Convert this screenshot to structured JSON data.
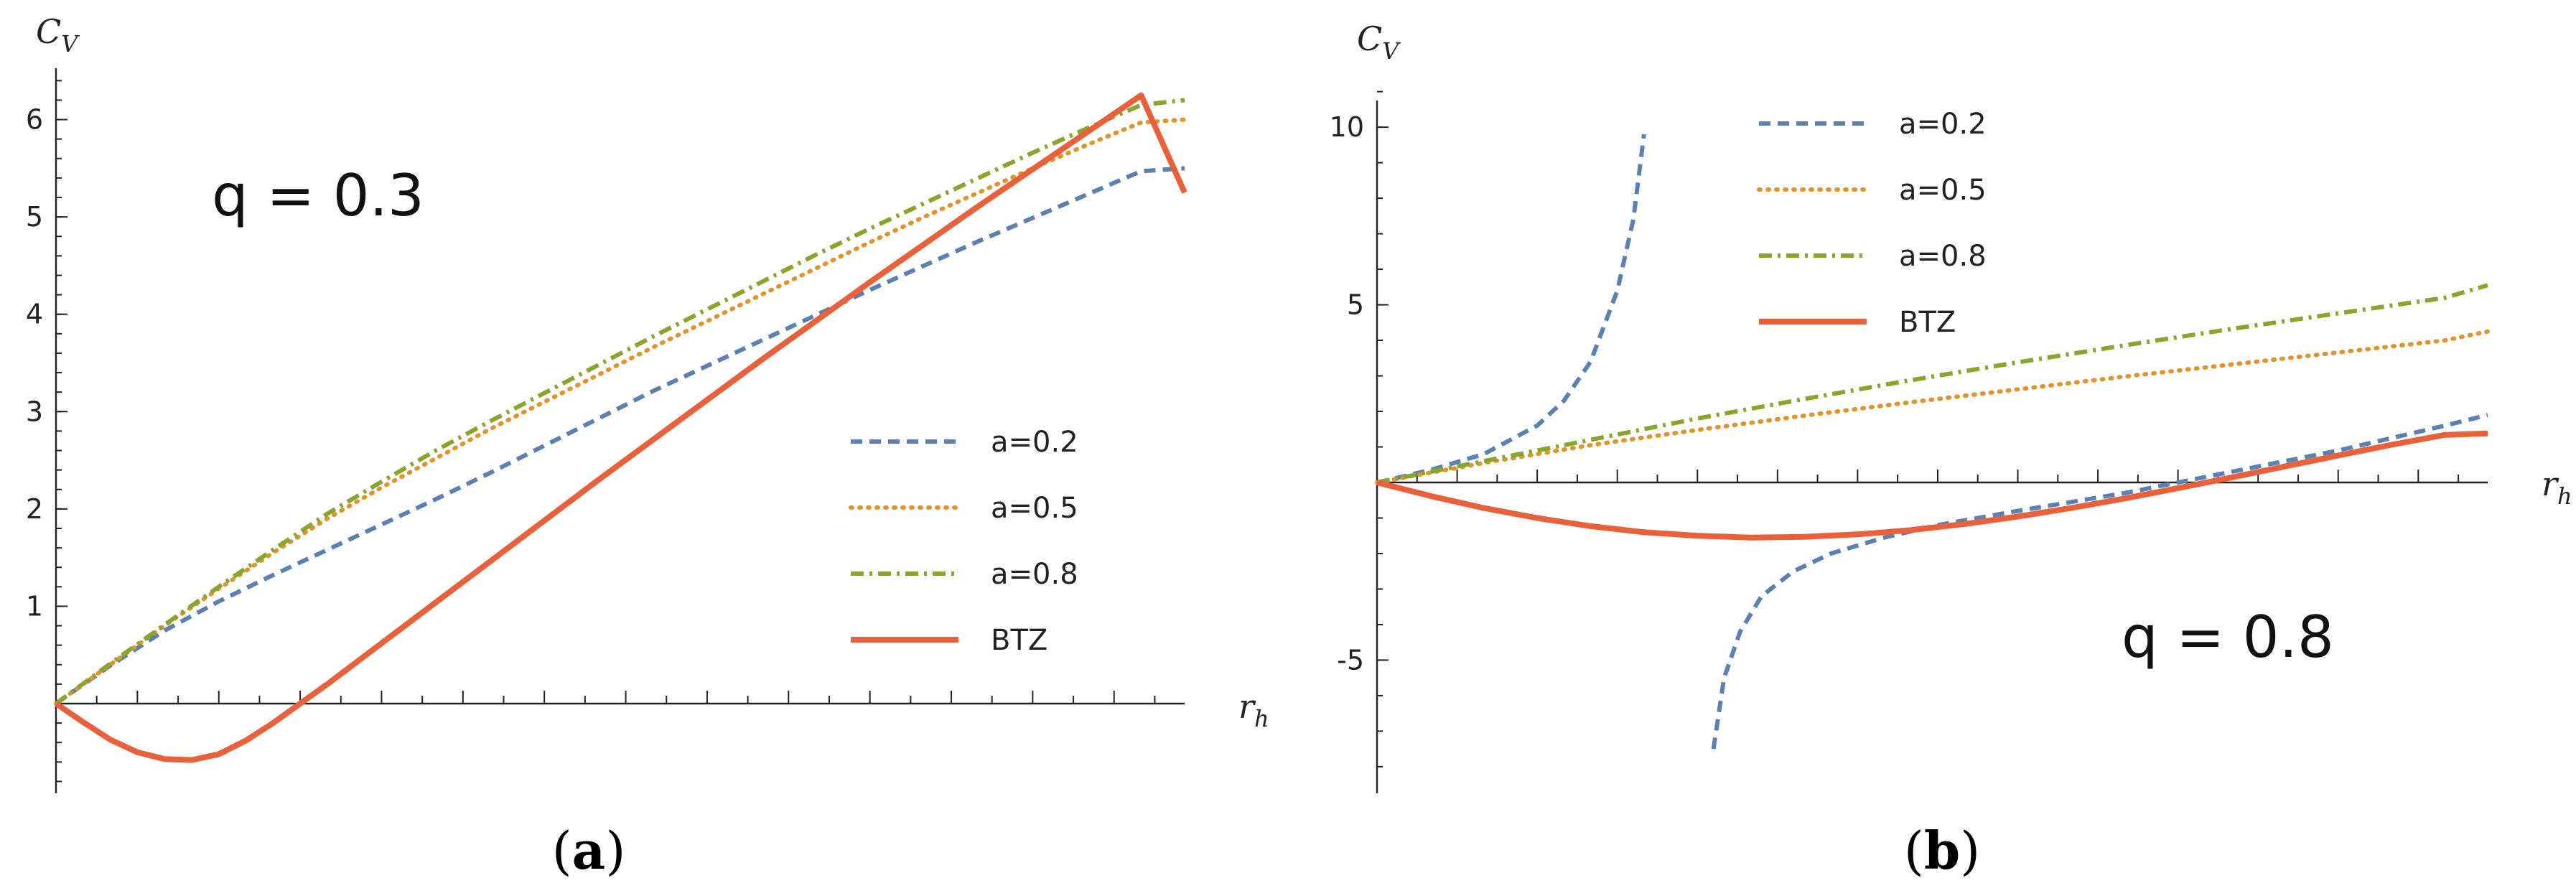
{
  "chart_data": [
    {
      "type": "line",
      "panel_label": "(a)",
      "panel_open": "(",
      "panel_letter": "a",
      "panel_close": ")",
      "annotation": "q = 0.3",
      "xlabel_main": "r",
      "xlabel_sub": "h",
      "ylabel_main": "C",
      "ylabel_sub": "V",
      "xlim": [
        0,
        2.08
      ],
      "ylim": [
        -0.95,
        6.5
      ],
      "x_tick_step": 0.075,
      "y_ticks": [
        1,
        2,
        3,
        4,
        5,
        6
      ],
      "y_tick_labels": [
        "1",
        "2",
        "3",
        "4",
        "5",
        "6"
      ],
      "legend_position": "right-middle",
      "series": [
        {
          "name": "a=0.2",
          "color": "#5B80B2",
          "style": "dashed",
          "x": [
            0,
            0.1,
            0.2,
            0.3,
            0.4,
            0.5,
            0.6,
            0.7,
            0.8,
            0.9,
            1.0,
            1.1,
            1.2,
            1.3,
            1.4,
            1.5,
            1.6,
            1.7,
            1.8,
            1.9,
            2.0,
            2.08
          ],
          "y": [
            0,
            0.39,
            0.75,
            1.05,
            1.32,
            1.58,
            1.84,
            2.1,
            2.37,
            2.65,
            2.93,
            3.21,
            3.47,
            3.73,
            3.99,
            4.25,
            4.5,
            4.75,
            4.99,
            5.23,
            5.47,
            5.5
          ]
        },
        {
          "name": "a=0.5",
          "color": "#E0952C",
          "style": "dotted",
          "x": [
            0,
            0.1,
            0.2,
            0.3,
            0.4,
            0.5,
            0.6,
            0.7,
            0.8,
            0.9,
            1.0,
            1.1,
            1.2,
            1.3,
            1.4,
            1.5,
            1.6,
            1.7,
            1.8,
            1.9,
            2.0,
            2.08
          ],
          "y": [
            0,
            0.4,
            0.8,
            1.18,
            1.55,
            1.9,
            2.22,
            2.52,
            2.82,
            3.1,
            3.38,
            3.66,
            3.93,
            4.2,
            4.47,
            4.74,
            5.0,
            5.25,
            5.5,
            5.74,
            5.97,
            6.0
          ]
        },
        {
          "name": "a=0.8",
          "color": "#8AA52B",
          "style": "dashdot",
          "x": [
            0,
            0.1,
            0.2,
            0.3,
            0.4,
            0.5,
            0.6,
            0.7,
            0.8,
            0.9,
            1.0,
            1.1,
            1.2,
            1.3,
            1.4,
            1.5,
            1.6,
            1.7,
            1.8,
            1.9,
            2.0,
            2.08
          ],
          "y": [
            0,
            0.41,
            0.81,
            1.2,
            1.58,
            1.95,
            2.28,
            2.6,
            2.9,
            3.19,
            3.48,
            3.77,
            4.05,
            4.33,
            4.61,
            4.88,
            5.14,
            5.4,
            5.66,
            5.91,
            6.15,
            6.2
          ]
        },
        {
          "name": "BTZ",
          "color": "#E8613A",
          "style": "solid",
          "x": [
            0,
            0.05,
            0.1,
            0.15,
            0.2,
            0.25,
            0.3,
            0.35,
            0.4,
            0.45,
            0.5,
            0.55,
            0.6,
            0.65,
            0.7,
            0.8,
            0.9,
            1.0,
            1.1,
            1.2,
            1.3,
            1.4,
            1.5,
            1.6,
            1.7,
            1.8,
            1.9,
            2.0,
            2.08
          ],
          "y": [
            0,
            -0.19,
            -0.37,
            -0.5,
            -0.57,
            -0.58,
            -0.52,
            -0.38,
            -0.2,
            0.0,
            0.2,
            0.41,
            0.62,
            0.83,
            1.04,
            1.46,
            1.88,
            2.3,
            2.71,
            3.12,
            3.53,
            3.93,
            4.33,
            4.72,
            5.11,
            5.49,
            5.87,
            6.25,
            5.25
          ]
        }
      ]
    },
    {
      "type": "line",
      "panel_label": "(b)",
      "panel_open": "(",
      "panel_letter": "b",
      "panel_close": ")",
      "annotation": "q = 0.8",
      "xlabel_main": "r",
      "xlabel_sub": "h",
      "ylabel_main": "C",
      "ylabel_sub": "V",
      "xlim": [
        0,
        2.08
      ],
      "ylim": [
        -8.5,
        11.0
      ],
      "x_tick_step": 0.075,
      "y_ticks": [
        -5,
        5,
        10
      ],
      "y_tick_labels": [
        "-5",
        "5",
        "10"
      ],
      "legend_position": "top-left",
      "series": [
        {
          "name": "a=0.2",
          "color": "#5B80B2",
          "style": "dashed",
          "x": [
            0,
            0.1,
            0.2,
            0.3,
            0.35,
            0.4,
            0.45,
            0.48,
            0.5
          ],
          "y": [
            0,
            0.35,
            0.8,
            1.6,
            2.3,
            3.4,
            5.4,
            7.4,
            9.8
          ],
          "x2": [
            0.63,
            0.65,
            0.68,
            0.72,
            0.78,
            0.85,
            0.95,
            1.05,
            1.2,
            1.4,
            1.6,
            1.8,
            2.0,
            2.08
          ],
          "y2": [
            -7.5,
            -5.5,
            -4.2,
            -3.2,
            -2.5,
            -2.0,
            -1.55,
            -1.2,
            -0.8,
            -0.3,
            0.3,
            0.9,
            1.6,
            1.9
          ]
        },
        {
          "name": "a=0.5",
          "color": "#E0952C",
          "style": "dotted",
          "x": [
            0,
            0.2,
            0.4,
            0.6,
            0.8,
            1.0,
            1.2,
            1.4,
            1.6,
            1.8,
            2.0,
            2.08
          ],
          "y": [
            0,
            0.55,
            1.05,
            1.48,
            1.88,
            2.26,
            2.62,
            2.98,
            3.32,
            3.66,
            4.0,
            4.25
          ]
        },
        {
          "name": "a=0.8",
          "color": "#8AA52B",
          "style": "dashdot",
          "x": [
            0,
            0.2,
            0.4,
            0.6,
            0.8,
            1.0,
            1.2,
            1.4,
            1.6,
            1.8,
            2.0,
            2.08
          ],
          "y": [
            0,
            0.6,
            1.2,
            1.8,
            2.35,
            2.88,
            3.38,
            3.86,
            4.32,
            4.76,
            5.2,
            5.55
          ]
        },
        {
          "name": "BTZ",
          "color": "#E8613A",
          "style": "solid",
          "x": [
            0,
            0.1,
            0.2,
            0.3,
            0.4,
            0.5,
            0.6,
            0.7,
            0.8,
            0.9,
            1.0,
            1.1,
            1.2,
            1.3,
            1.4,
            1.5,
            1.6,
            1.7,
            1.8,
            1.9,
            2.0,
            2.08
          ],
          "y": [
            0,
            -0.38,
            -0.72,
            -1.0,
            -1.23,
            -1.4,
            -1.5,
            -1.55,
            -1.53,
            -1.46,
            -1.34,
            -1.17,
            -0.96,
            -0.72,
            -0.45,
            -0.16,
            0.14,
            0.45,
            0.76,
            1.06,
            1.34,
            1.38
          ]
        }
      ]
    }
  ]
}
